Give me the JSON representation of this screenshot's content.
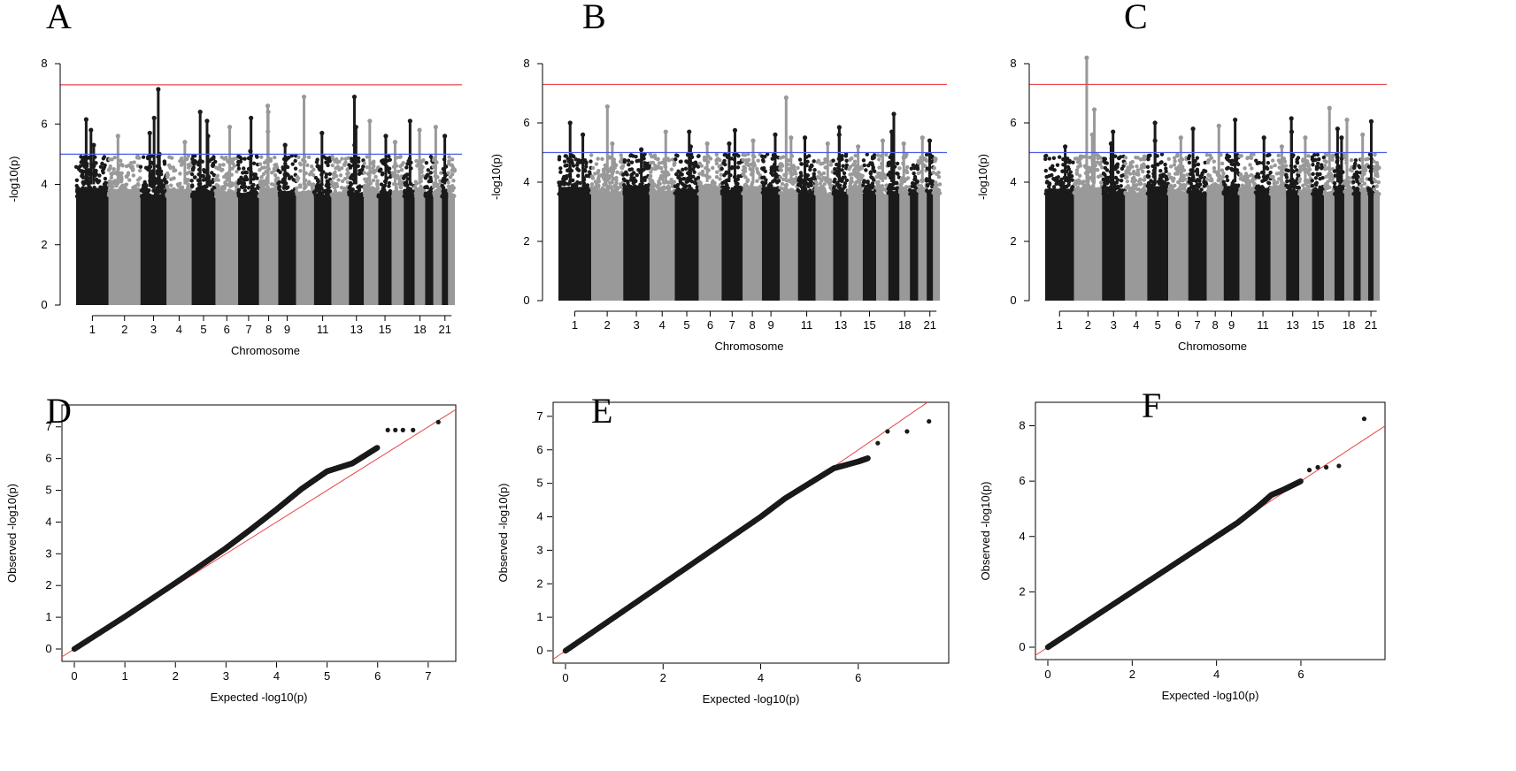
{
  "chart_data": [
    {
      "panel": "A",
      "type": "scatter",
      "plot": "manhattan",
      "xlabel": "Chromosome",
      "ylabel": "-log10(p)",
      "ylim": [
        0,
        8
      ],
      "yticks": [
        0,
        2,
        4,
        6,
        8
      ],
      "xticks": [
        "1",
        "2",
        "3",
        "4",
        "5",
        "6",
        "7",
        "8",
        "9",
        "11",
        "13",
        "15",
        "18",
        "21"
      ],
      "thresholds": [
        {
          "value": 7.3,
          "color": "#e8474a"
        },
        {
          "value": 5.0,
          "color": "#4b5ee8"
        }
      ],
      "peaks": [
        [
          1,
          6.15
        ],
        [
          1,
          5.8
        ],
        [
          1,
          5.3
        ],
        [
          2,
          5.6
        ],
        [
          3,
          7.15
        ],
        [
          3,
          6.2
        ],
        [
          3,
          5.7
        ],
        [
          3,
          5.0
        ],
        [
          4,
          5.4
        ],
        [
          5,
          6.4
        ],
        [
          5,
          6.1
        ],
        [
          5,
          5.6
        ],
        [
          6,
          5.9
        ],
        [
          7,
          6.2
        ],
        [
          7,
          5.1
        ],
        [
          8,
          6.6
        ],
        [
          8,
          6.4
        ],
        [
          8,
          5.75
        ],
        [
          9,
          5.3
        ],
        [
          10,
          6.9
        ],
        [
          11,
          5.7
        ],
        [
          13,
          6.9
        ],
        [
          13,
          5.9
        ],
        [
          13,
          5.3
        ],
        [
          14,
          6.1
        ],
        [
          15,
          5.6
        ],
        [
          16,
          5.4
        ],
        [
          17,
          6.1
        ],
        [
          18,
          5.8
        ],
        [
          20,
          5.9
        ],
        [
          21,
          5.6
        ]
      ]
    },
    {
      "panel": "B",
      "type": "scatter",
      "plot": "manhattan",
      "xlabel": "Chromosome",
      "ylabel": "-log10(p)",
      "ylim": [
        0,
        8
      ],
      "yticks": [
        0,
        2,
        4,
        6,
        8
      ],
      "xticks": [
        "1",
        "2",
        "3",
        "4",
        "5",
        "6",
        "7",
        "8",
        "9",
        "11",
        "13",
        "15",
        "18",
        "21"
      ],
      "thresholds": [
        {
          "value": 7.3,
          "color": "#e8474a"
        },
        {
          "value": 5.0,
          "color": "#4b5ee8"
        }
      ],
      "peaks": [
        [
          1,
          6.0
        ],
        [
          1,
          5.6
        ],
        [
          2,
          6.55
        ],
        [
          2,
          5.3
        ],
        [
          3,
          5.1
        ],
        [
          4,
          5.7
        ],
        [
          5,
          5.7
        ],
        [
          5,
          5.2
        ],
        [
          6,
          5.3
        ],
        [
          7,
          5.75
        ],
        [
          7,
          5.3
        ],
        [
          8,
          5.4
        ],
        [
          9,
          5.6
        ],
        [
          10,
          6.85
        ],
        [
          10,
          5.5
        ],
        [
          11,
          5.5
        ],
        [
          12,
          5.3
        ],
        [
          13,
          5.85
        ],
        [
          13,
          5.6
        ],
        [
          14,
          5.2
        ],
        [
          16,
          5.4
        ],
        [
          17,
          6.3
        ],
        [
          17,
          5.7
        ],
        [
          18,
          5.3
        ],
        [
          20,
          5.5
        ],
        [
          21,
          5.4
        ]
      ]
    },
    {
      "panel": "C",
      "type": "scatter",
      "plot": "manhattan",
      "xlabel": "Chromosome",
      "ylabel": "-log10(p)",
      "ylim": [
        0,
        8
      ],
      "yticks": [
        0,
        2,
        4,
        6,
        8
      ],
      "xticks": [
        "1",
        "2",
        "3",
        "4",
        "5",
        "6",
        "7",
        "8",
        "9",
        "11",
        "13",
        "15",
        "18",
        "21"
      ],
      "thresholds": [
        {
          "value": 7.3,
          "color": "#e8474a"
        },
        {
          "value": 5.0,
          "color": "#4b5ee8"
        }
      ],
      "peaks": [
        [
          1,
          5.2
        ],
        [
          2,
          8.2
        ],
        [
          2,
          6.45
        ],
        [
          2,
          5.6
        ],
        [
          3,
          5.7
        ],
        [
          3,
          5.3
        ],
        [
          5,
          6.0
        ],
        [
          5,
          5.4
        ],
        [
          6,
          5.5
        ],
        [
          7,
          5.8
        ],
        [
          8,
          5.9
        ],
        [
          9,
          6.1
        ],
        [
          11,
          5.5
        ],
        [
          12,
          5.2
        ],
        [
          13,
          6.15
        ],
        [
          13,
          5.7
        ],
        [
          14,
          5.5
        ],
        [
          16,
          6.5
        ],
        [
          17,
          5.8
        ],
        [
          17,
          5.5
        ],
        [
          18,
          6.1
        ],
        [
          20,
          5.6
        ],
        [
          21,
          6.05
        ]
      ]
    },
    {
      "panel": "D",
      "type": "scatter",
      "plot": "qq",
      "xlabel": "Expected -log10(p)",
      "ylabel": "Observed -log10(p)",
      "xlim": [
        0,
        7.3
      ],
      "ylim": [
        0,
        7.3
      ],
      "xticks": [
        0,
        1,
        2,
        3,
        4,
        5,
        6,
        7
      ],
      "yticks": [
        0,
        1,
        2,
        3,
        4,
        5,
        6,
        7
      ],
      "curve": [
        [
          0,
          0
        ],
        [
          1,
          1.02
        ],
        [
          2,
          2.08
        ],
        [
          3,
          3.18
        ],
        [
          3.5,
          3.78
        ],
        [
          4,
          4.4
        ],
        [
          4.5,
          5.05
        ],
        [
          5,
          5.6
        ],
        [
          5.5,
          5.85
        ],
        [
          6,
          6.35
        ]
      ],
      "tail": [
        [
          6.2,
          6.9
        ],
        [
          6.35,
          6.9
        ],
        [
          6.5,
          6.9
        ],
        [
          6.7,
          6.9
        ],
        [
          7.2,
          7.15
        ]
      ]
    },
    {
      "panel": "E",
      "type": "scatter",
      "plot": "qq",
      "xlabel": "Expected -log10(p)",
      "ylabel": "Observed -log10(p)",
      "xlim": [
        0,
        7.6
      ],
      "ylim": [
        0,
        7.05
      ],
      "xticks": [
        0,
        2,
        4,
        6
      ],
      "yticks": [
        0,
        1,
        2,
        3,
        4,
        5,
        6,
        7
      ],
      "curve": [
        [
          0,
          0
        ],
        [
          1,
          1.0
        ],
        [
          2,
          2.0
        ],
        [
          3,
          3.0
        ],
        [
          4,
          4.0
        ],
        [
          4.5,
          4.55
        ],
        [
          5,
          5.0
        ],
        [
          5.5,
          5.45
        ],
        [
          6,
          5.65
        ],
        [
          6.2,
          5.75
        ]
      ],
      "tail": [
        [
          6.4,
          6.2
        ],
        [
          6.6,
          6.55
        ],
        [
          7.0,
          6.55
        ],
        [
          7.45,
          6.85
        ]
      ]
    },
    {
      "panel": "F",
      "type": "scatter",
      "plot": "qq",
      "xlabel": "Expected -log10(p)",
      "ylabel": "Observed -log10(p)",
      "xlim": [
        0,
        7.7
      ],
      "ylim": [
        0,
        8.4
      ],
      "xticks": [
        0,
        2,
        4,
        6
      ],
      "yticks": [
        0,
        2,
        4,
        6,
        8
      ],
      "curve": [
        [
          0,
          0
        ],
        [
          1,
          1.0
        ],
        [
          2,
          2.0
        ],
        [
          3,
          3.0
        ],
        [
          4,
          4.0
        ],
        [
          4.5,
          4.5
        ],
        [
          5,
          5.1
        ],
        [
          5.3,
          5.5
        ],
        [
          5.6,
          5.7
        ],
        [
          6.0,
          6.0
        ]
      ],
      "tail": [
        [
          6.2,
          6.4
        ],
        [
          6.4,
          6.5
        ],
        [
          6.6,
          6.5
        ],
        [
          6.9,
          6.55
        ],
        [
          7.5,
          8.25
        ]
      ]
    }
  ],
  "colors": {
    "dark": "#1a1a1a",
    "light": "#999999",
    "genomewide": "#e8474a",
    "suggestive": "#4b5ee8",
    "identity": "#e8474a"
  }
}
